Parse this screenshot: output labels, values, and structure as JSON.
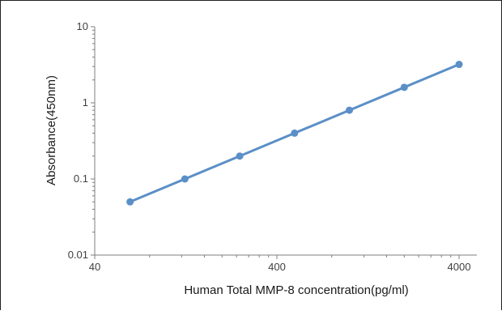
{
  "chart_data": {
    "type": "line",
    "title": "",
    "xlabel": "Human Total MMP-8  concentration(pg/ml)",
    "ylabel": "Absorbance(450nm)",
    "xscale": "log",
    "yscale": "log",
    "xlim": [
      40,
      4000
    ],
    "ylim": [
      0.01,
      10
    ],
    "xticks": [
      "40",
      "400",
      "4000"
    ],
    "yticks": [
      "10",
      "1",
      "0.1",
      "0.01"
    ],
    "grid": false,
    "legend": "none",
    "series": [
      {
        "color": "#5b8fc7",
        "marker": "circle",
        "x": [
          62.5,
          125,
          250,
          500,
          1000,
          2000,
          4000
        ],
        "y": [
          0.05,
          0.1,
          0.2,
          0.4,
          0.8,
          1.6,
          3.2
        ]
      }
    ]
  }
}
